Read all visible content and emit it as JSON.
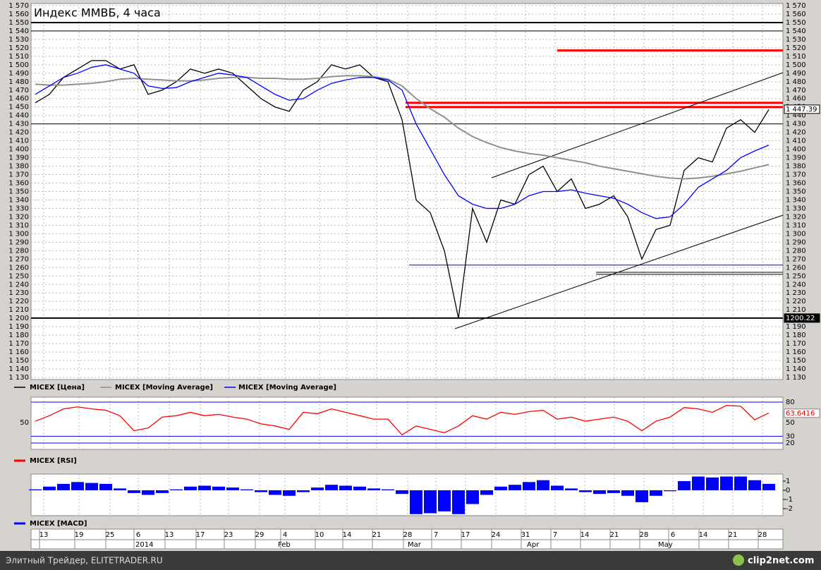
{
  "chart_data": [
    {
      "type": "line",
      "title": "Индекс ММВБ, 4 часа",
      "ylim": [
        1127.5,
        1572.5
      ],
      "yticks": [
        {
          "value": 1570,
          "label": "1 570"
        },
        {
          "value": 1560,
          "label": "1 560"
        },
        {
          "value": 1550,
          "label": "1 550"
        },
        {
          "value": 1540,
          "label": "1 540"
        },
        {
          "value": 1530,
          "label": "1 530"
        },
        {
          "value": 1520,
          "label": "1 520"
        },
        {
          "value": 1510,
          "label": "1 510"
        },
        {
          "value": 1500,
          "label": "1 500"
        },
        {
          "value": 1490,
          "label": "1 490"
        },
        {
          "value": 1480,
          "label": "1 480"
        },
        {
          "value": 1470,
          "label": "1 470"
        },
        {
          "value": 1460,
          "label": "1 460"
        },
        {
          "value": 1450,
          "label": "1 450"
        },
        {
          "value": 1440,
          "label": "1 440"
        },
        {
          "value": 1430,
          "label": "1 430"
        },
        {
          "value": 1420,
          "label": "1 420"
        },
        {
          "value": 1410,
          "label": "1 410"
        },
        {
          "value": 1400,
          "label": "1 400"
        },
        {
          "value": 1390,
          "label": "1 390"
        },
        {
          "value": 1380,
          "label": "1 380"
        },
        {
          "value": 1370,
          "label": "1 370"
        },
        {
          "value": 1360,
          "label": "1 360"
        },
        {
          "value": 1350,
          "label": "1 350"
        },
        {
          "value": 1340,
          "label": "1 340"
        },
        {
          "value": 1330,
          "label": "1 330"
        },
        {
          "value": 1320,
          "label": "1 320"
        },
        {
          "value": 1310,
          "label": "1 310"
        },
        {
          "value": 1300,
          "label": "1 300"
        },
        {
          "value": 1290,
          "label": "1 290"
        },
        {
          "value": 1280,
          "label": "1 280"
        },
        {
          "value": 1270,
          "label": "1 270"
        },
        {
          "value": 1260,
          "label": "1 260"
        },
        {
          "value": 1250,
          "label": "1 250"
        },
        {
          "value": 1240,
          "label": "1 240"
        },
        {
          "value": 1230,
          "label": "1 230"
        },
        {
          "value": 1220,
          "label": "1 220"
        },
        {
          "value": 1210,
          "label": "1 210"
        },
        {
          "value": 1200,
          "label": "1 200"
        },
        {
          "value": 1190,
          "label": "1 190"
        },
        {
          "value": 1180,
          "label": "1 180"
        },
        {
          "value": 1170,
          "label": "1 170"
        },
        {
          "value": 1160,
          "label": "1 160"
        },
        {
          "value": 1150,
          "label": "1 150"
        },
        {
          "value": 1140,
          "label": "1 140"
        },
        {
          "value": 1130,
          "label": "1 130"
        }
      ],
      "grid": true,
      "series": [
        {
          "name": "MICEX [Цена]",
          "color": "#000000",
          "values": [
            1455,
            1465,
            1485,
            1495,
            1505,
            1505,
            1495,
            1500,
            1465,
            1470,
            1480,
            1495,
            1490,
            1495,
            1490,
            1475,
            1460,
            1450,
            1445,
            1470,
            1480,
            1500,
            1495,
            1500,
            1485,
            1480,
            1435,
            1340,
            1325,
            1280,
            1200,
            1330,
            1290,
            1340,
            1335,
            1370,
            1380,
            1350,
            1365,
            1330,
            1335,
            1345,
            1320,
            1270,
            1305,
            1310,
            1375,
            1390,
            1385,
            1425,
            1435,
            1420,
            1447
          ]
        },
        {
          "name": "MICEX [Moving Average]",
          "color": "#909090",
          "values": [
            1477,
            1476,
            1476,
            1477,
            1478,
            1480,
            1483,
            1484,
            1483,
            1482,
            1481,
            1481,
            1482,
            1484,
            1485,
            1485,
            1484,
            1484,
            1483,
            1483,
            1484,
            1486,
            1487,
            1487,
            1486,
            1483,
            1475,
            1460,
            1448,
            1438,
            1425,
            1415,
            1408,
            1402,
            1398,
            1395,
            1393,
            1390,
            1387,
            1384,
            1380,
            1377,
            1374,
            1371,
            1368,
            1366,
            1365,
            1366,
            1368,
            1371,
            1374,
            1378,
            1382
          ]
        },
        {
          "name": "MICEX [Moving Average]",
          "color": "#0000ff",
          "values": [
            1465,
            1475,
            1485,
            1490,
            1497,
            1500,
            1495,
            1490,
            1475,
            1472,
            1473,
            1480,
            1485,
            1490,
            1488,
            1485,
            1475,
            1465,
            1458,
            1460,
            1470,
            1478,
            1482,
            1485,
            1485,
            1482,
            1470,
            1430,
            1400,
            1370,
            1345,
            1335,
            1330,
            1330,
            1335,
            1345,
            1350,
            1350,
            1352,
            1348,
            1345,
            1342,
            1335,
            1325,
            1318,
            1320,
            1335,
            1355,
            1365,
            1375,
            1390,
            1398,
            1405
          ]
        }
      ],
      "levels": [
        {
          "value": 1550,
          "color": "#000000"
        },
        {
          "value": 1540,
          "color": "#000000"
        },
        {
          "value": 1517,
          "color": "#ff0000"
        },
        {
          "value": 1455,
          "color": "#ff0000"
        },
        {
          "value": 1450,
          "color": "#ff0000"
        },
        {
          "value": 1430,
          "color": "#000000"
        },
        {
          "value": 1263,
          "color": "#0000ff"
        },
        {
          "value": 1252,
          "color": "#000000"
        },
        {
          "value": 1200.22,
          "color": "#000000"
        }
      ],
      "price_markers": [
        {
          "value": 1447.39,
          "label": "1 447.39"
        },
        1200.22
      ]
    },
    {
      "type": "line",
      "ylim": [
        10.7,
        87.2
      ],
      "yticks": [
        20,
        30,
        50,
        80
      ],
      "left_ticks": [
        50
      ],
      "last_value": 63.6416,
      "series": [
        {
          "name": "MICEX [RSI]",
          "color": "#ff0000",
          "values": [
            52,
            60,
            70,
            73,
            70,
            68,
            60,
            38,
            42,
            58,
            60,
            65,
            60,
            62,
            58,
            55,
            48,
            45,
            40,
            65,
            63,
            70,
            65,
            60,
            55,
            55,
            32,
            45,
            40,
            35,
            45,
            60,
            55,
            65,
            62,
            66,
            68,
            55,
            58,
            52,
            55,
            58,
            52,
            38,
            52,
            58,
            72,
            70,
            65,
            75,
            74,
            54,
            64
          ]
        }
      ]
    },
    {
      "type": "bar",
      "ylim": [
        -2.77,
        1.77
      ],
      "yticks": [
        1,
        0,
        -1,
        -2
      ],
      "series": [
        {
          "name": "MICEX [MACD]",
          "color": "#0000ff",
          "values": [
            0.1,
            0.4,
            0.7,
            0.9,
            0.8,
            0.7,
            0.2,
            -0.3,
            -0.5,
            -0.3,
            0.1,
            0.4,
            0.5,
            0.4,
            0.3,
            0.1,
            -0.2,
            -0.5,
            -0.6,
            -0.2,
            0.3,
            0.6,
            0.5,
            0.4,
            0.2,
            0.1,
            -0.4,
            -2.6,
            -2.5,
            -2.3,
            -2.6,
            -1.5,
            -0.5,
            0.4,
            0.6,
            0.9,
            1.1,
            0.5,
            0.2,
            -0.2,
            -0.4,
            -0.3,
            -0.6,
            -1.3,
            -0.6,
            -0.1,
            1.0,
            1.5,
            1.4,
            1.5,
            1.5,
            1.1,
            0.7
          ]
        }
      ]
    }
  ],
  "date_axis": {
    "days": [
      "13",
      "19",
      "25",
      "6",
      "13",
      "17",
      "23",
      "29",
      "4",
      "10",
      "14",
      "21",
      "28",
      "7",
      "17",
      "24",
      "31",
      "7",
      "14",
      "21",
      "28",
      "6",
      "14",
      "21",
      "28"
    ],
    "months": [
      "2014",
      "Feb",
      "Mar",
      "Apr",
      "May"
    ]
  },
  "footer": {
    "source": "Элитный Трейдер, ELITETRADER.RU",
    "brand": "clip2net.com"
  }
}
